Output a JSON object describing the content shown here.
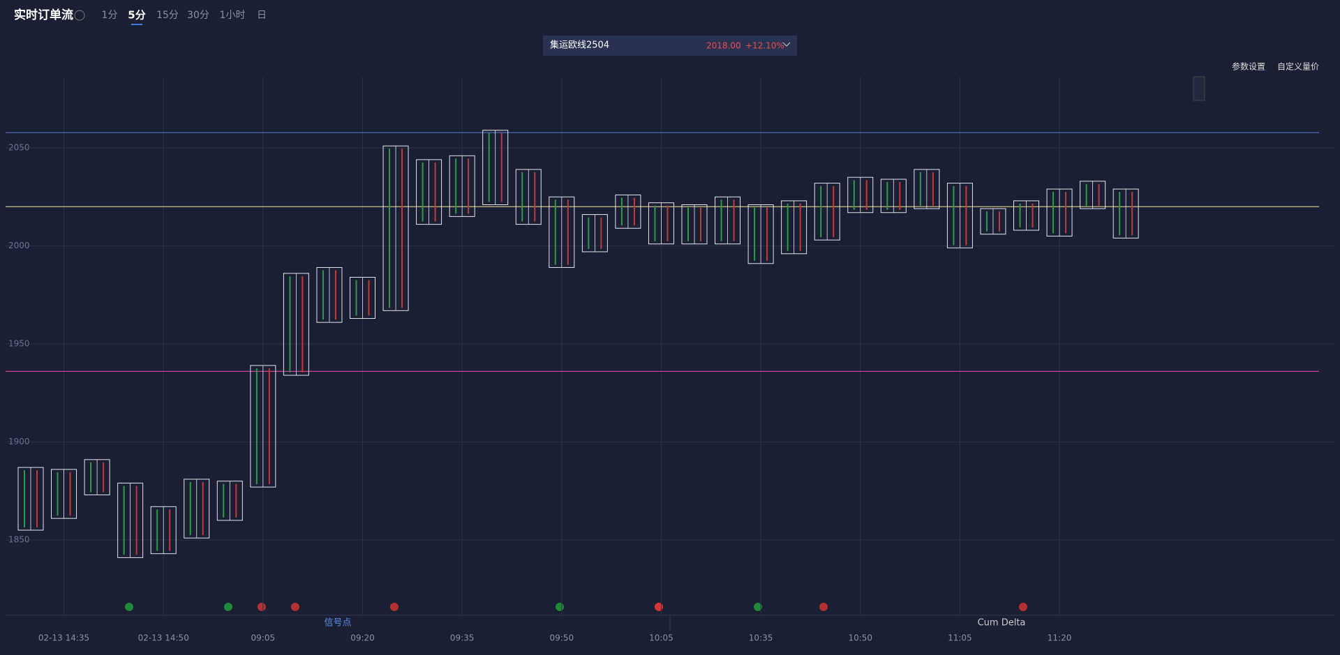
{
  "header": {
    "title": "实时订单流",
    "tabs": [
      "1分",
      "5分",
      "15分",
      "30分",
      "1小时",
      "日"
    ],
    "active_tab": 1
  },
  "symbol": {
    "name": "集运欧线2504",
    "price": "2018.00",
    "change": "+12.10%"
  },
  "actions": [
    "参数设置",
    "自定义量价"
  ],
  "bottom_tabs": [
    "信号点",
    "Cum Delta"
  ],
  "chart_data": {
    "type": "footprint",
    "categories": [
      null,
      "02-13 14:35",
      null,
      null,
      "02-13 14:50",
      null,
      null,
      "09:05",
      null,
      null,
      "09:20",
      null,
      null,
      "09:35",
      null,
      null,
      "09:50",
      null,
      null,
      "10:05",
      null,
      null,
      "10:35",
      null,
      null,
      "10:50",
      null,
      null,
      "11:05",
      null,
      null,
      "11:20",
      null,
      null
    ],
    "high": [
      1887,
      1886,
      1891,
      1879,
      1867,
      1881,
      1880,
      1939,
      1986,
      1989,
      1984,
      2051,
      2044,
      2046,
      2059,
      2039,
      2025,
      2016,
      2026,
      2022,
      2021,
      2025,
      2021,
      2023,
      2032,
      2035,
      2034,
      2039,
      2032,
      2019,
      2023,
      2029,
      2033,
      2029
    ],
    "low": [
      1855,
      1861,
      1873,
      1841,
      1843,
      1851,
      1860,
      1877,
      1934,
      1961,
      1963,
      1967,
      2011,
      2015,
      2021,
      2011,
      1989,
      1997,
      2009,
      2001,
      2001,
      2001,
      1991,
      1996,
      2003,
      2017,
      2017,
      2019,
      1999,
      2006,
      2008,
      2005,
      2019,
      2004
    ],
    "ylim": [
      1811.6,
      2086.3
    ],
    "yticks": [
      1850,
      1900,
      1950,
      2000,
      2050
    ],
    "grid": true,
    "levels": [
      {
        "value": 2057.8,
        "color": "#4a6fb8"
      },
      {
        "value": 2020,
        "color": "#d9c98a"
      },
      {
        "value": 1936,
        "color": "#c8469a"
      }
    ]
  }
}
